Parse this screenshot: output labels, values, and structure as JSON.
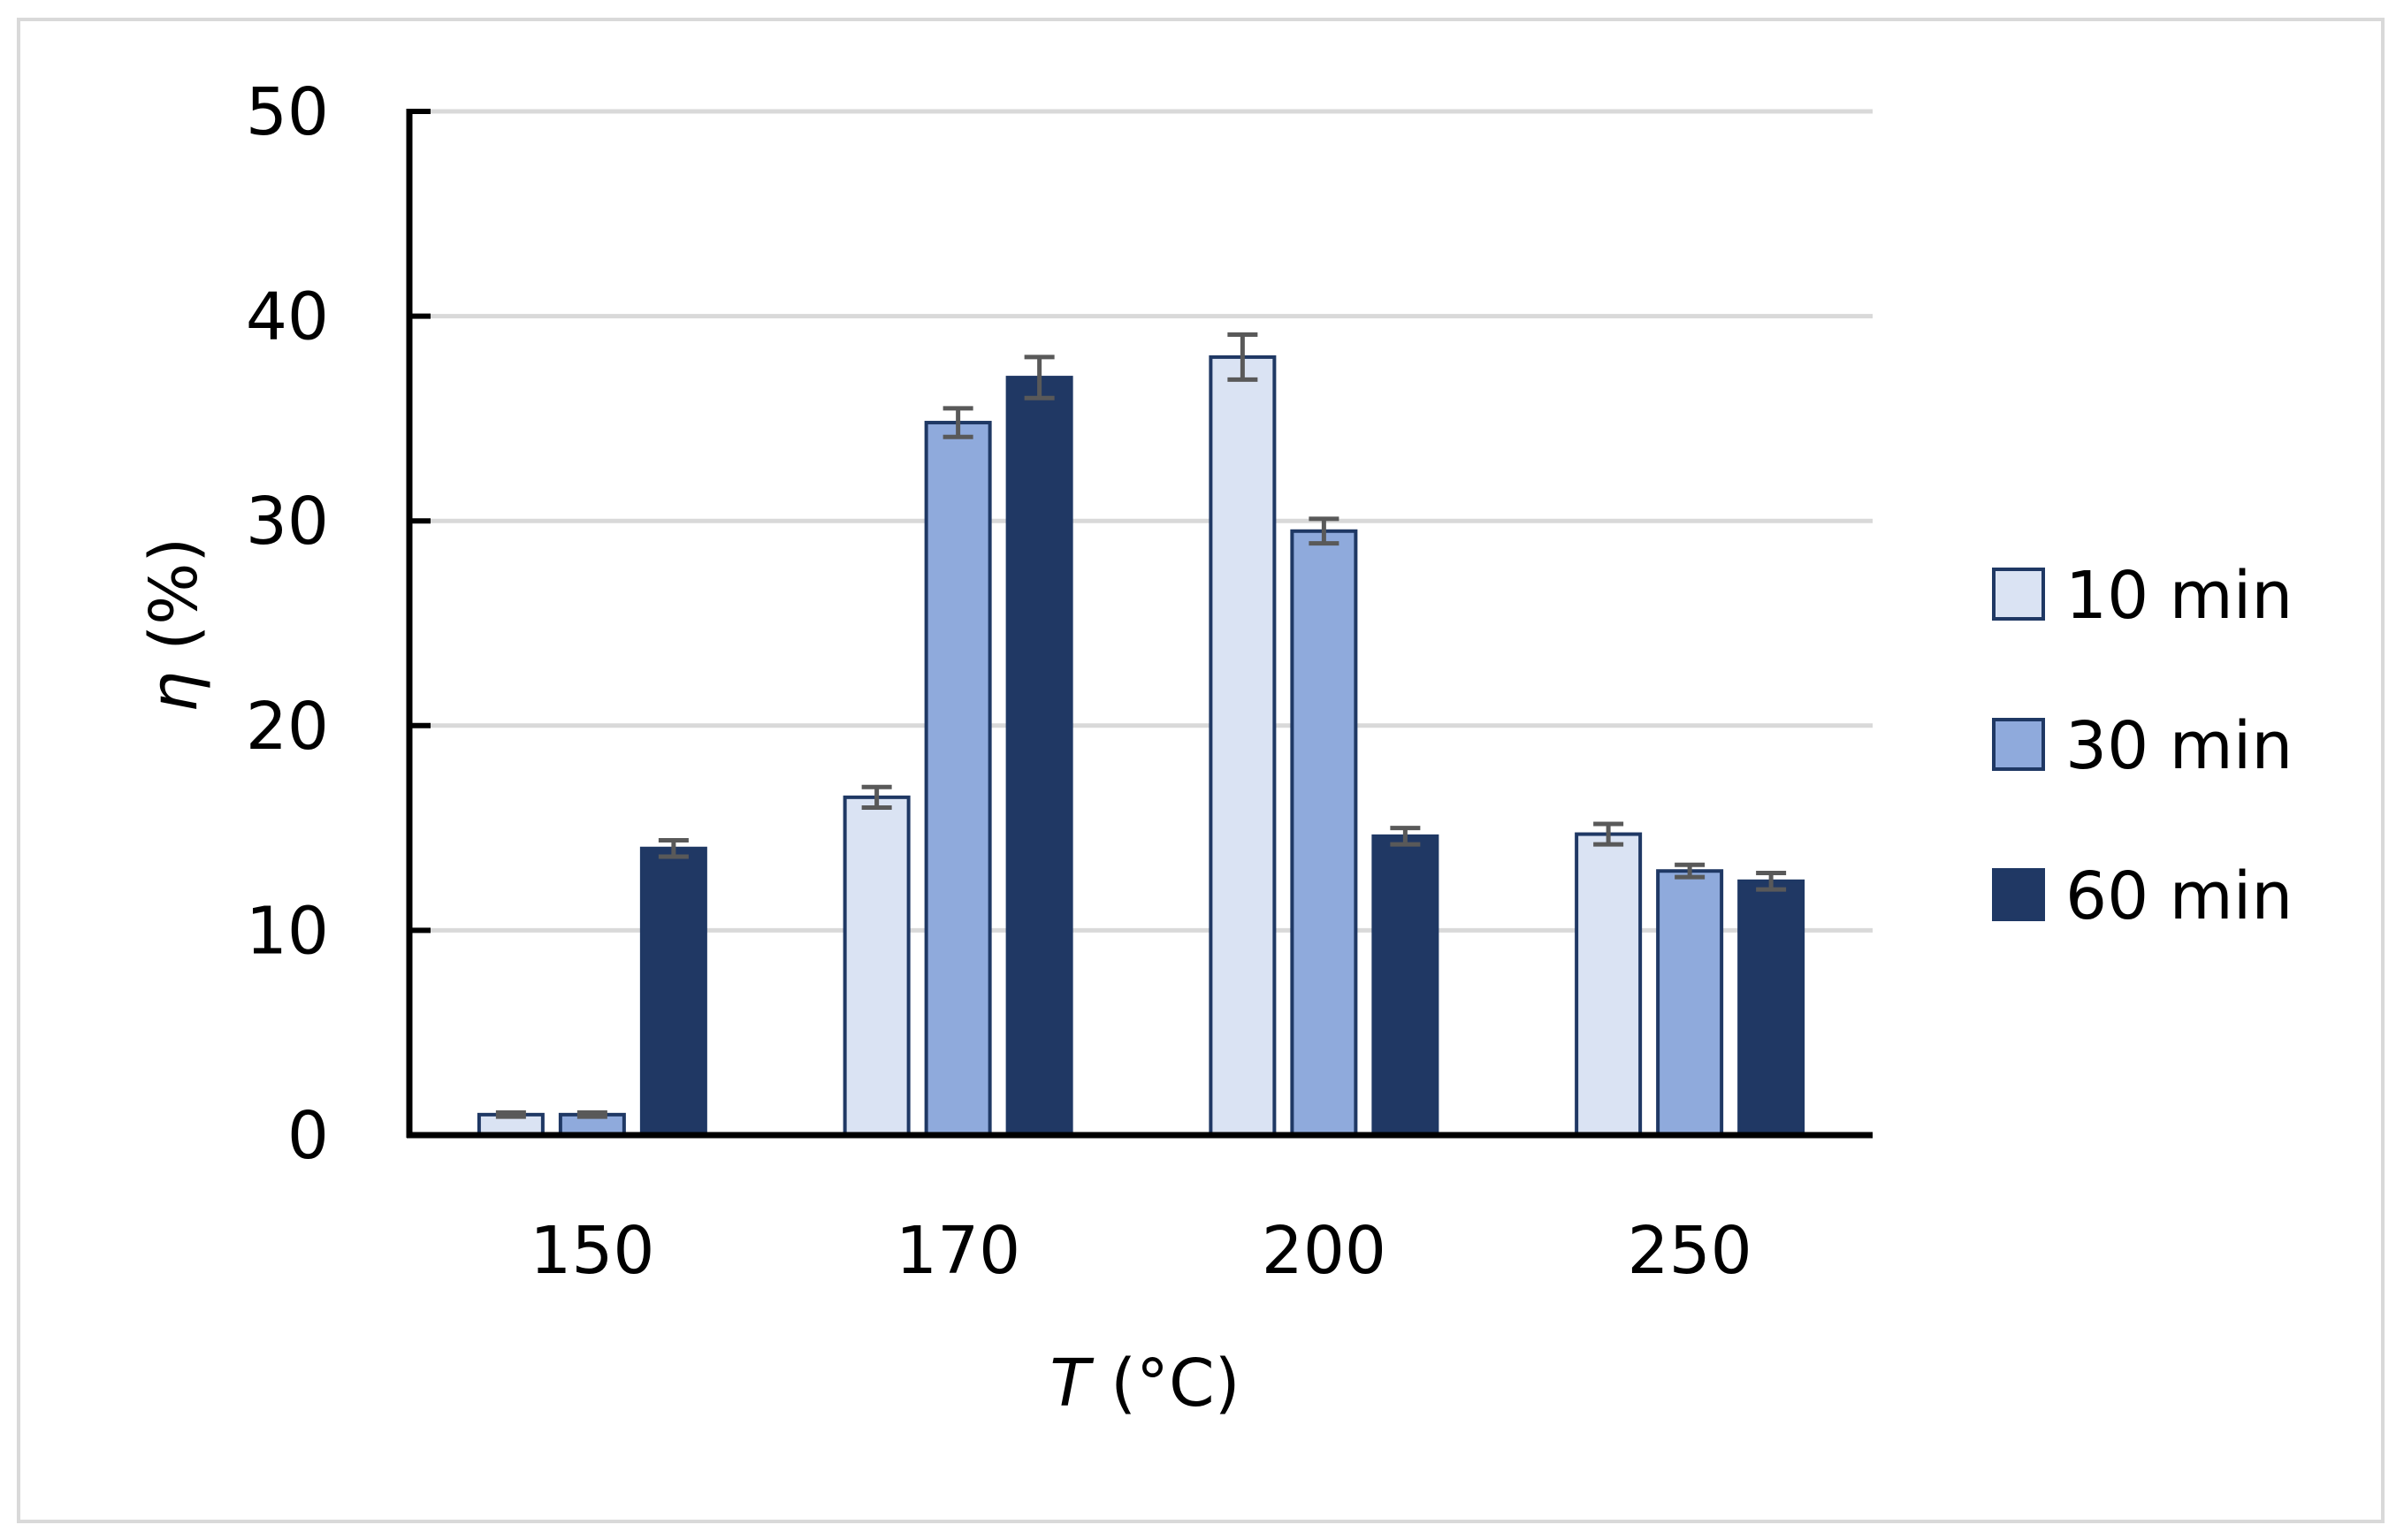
{
  "chart_data": {
    "type": "bar",
    "title": "",
    "xlabel_var": "T",
    "xlabel_unit": " (°C)",
    "ylabel_var": "η",
    "ylabel_unit": " (%)",
    "categories": [
      "150",
      "170",
      "200",
      "250"
    ],
    "ylim": [
      0,
      50
    ],
    "yticks": [
      0,
      10,
      20,
      30,
      40,
      50
    ],
    "grid": true,
    "legend_position": "right",
    "series": [
      {
        "name": "10 min",
        "color": "#dae3f3",
        "values": [
          1.0,
          16.5,
          38.0,
          14.7
        ],
        "errors": [
          0.1,
          0.5,
          1.1,
          0.5
        ]
      },
      {
        "name": "30 min",
        "color": "#8faadc",
        "values": [
          1.0,
          34.8,
          29.5,
          12.9
        ],
        "errors": [
          0.1,
          0.7,
          0.6,
          0.3
        ]
      },
      {
        "name": "60 min",
        "color": "#203864",
        "values": [
          14.0,
          37.0,
          14.6,
          12.4
        ],
        "errors": [
          0.4,
          1.0,
          0.4,
          0.4
        ]
      }
    ],
    "bar_edge_color": "#1f3864",
    "error_bar_color": "#595959",
    "gridline_color": "#d9d9d9",
    "axis_color": "#000000",
    "frame_color": "#d9d9d9"
  }
}
